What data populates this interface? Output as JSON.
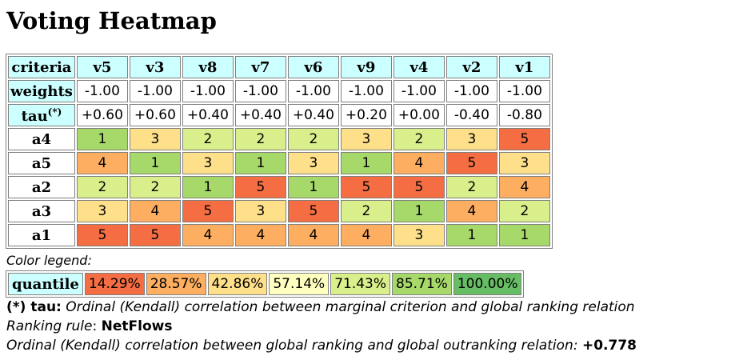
{
  "title": "Voting Heatmap",
  "header": {
    "criteria_label": "criteria",
    "columns": [
      "v5",
      "v3",
      "v8",
      "v7",
      "v6",
      "v9",
      "v4",
      "v2",
      "v1"
    ]
  },
  "weights": {
    "label": "weights",
    "values": [
      "-1.00",
      "-1.00",
      "-1.00",
      "-1.00",
      "-1.00",
      "-1.00",
      "-1.00",
      "-1.00",
      "-1.00"
    ]
  },
  "tau": {
    "label": "tau",
    "sup": "(*)",
    "values": [
      "+0.60",
      "+0.60",
      "+0.40",
      "+0.40",
      "+0.40",
      "+0.20",
      "+0.00",
      "-0.40",
      "-0.80"
    ]
  },
  "rows": [
    {
      "label": "a4",
      "values": [
        "1",
        "3",
        "2",
        "2",
        "2",
        "3",
        "2",
        "3",
        "5"
      ]
    },
    {
      "label": "a5",
      "values": [
        "4",
        "1",
        "3",
        "1",
        "3",
        "1",
        "4",
        "5",
        "3"
      ]
    },
    {
      "label": "a2",
      "values": [
        "2",
        "2",
        "1",
        "5",
        "1",
        "5",
        "5",
        "2",
        "4"
      ]
    },
    {
      "label": "a3",
      "values": [
        "3",
        "4",
        "5",
        "3",
        "5",
        "2",
        "1",
        "4",
        "2"
      ]
    },
    {
      "label": "a1",
      "values": [
        "5",
        "5",
        "4",
        "4",
        "4",
        "4",
        "3",
        "1",
        "1"
      ]
    }
  ],
  "rank_colors": {
    "1": "#a6d96a",
    "2": "#d9ef8b",
    "3": "#fee08b",
    "4": "#fdae61",
    "5": "#f46d43"
  },
  "legend": {
    "title": "Color legend:",
    "label": "quantile",
    "items": [
      {
        "text": "14.29%",
        "color": "#f46d43"
      },
      {
        "text": "28.57%",
        "color": "#fdae61"
      },
      {
        "text": "42.86%",
        "color": "#fee08b"
      },
      {
        "text": "57.14%",
        "color": "#ffffbf"
      },
      {
        "text": "71.43%",
        "color": "#d9ef8b"
      },
      {
        "text": "85.71%",
        "color": "#a6d96a"
      },
      {
        "text": "100.00%",
        "color": "#66bd63"
      }
    ]
  },
  "notes": {
    "tau_key": "(*) tau:",
    "tau_desc": " Ordinal (Kendall) correlation between marginal criterion and global ranking relation",
    "rule_label": "Ranking rule",
    "rule_sep": ": ",
    "rule_value": "NetFlows",
    "corr_label": "Ordinal (Kendall) correlation between global ranking and global outranking relation: ",
    "corr_value": "+0.778"
  }
}
